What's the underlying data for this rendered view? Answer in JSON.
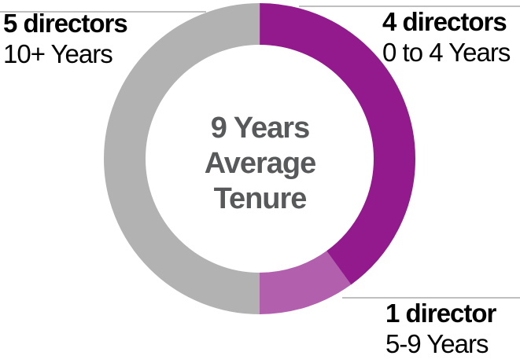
{
  "chart_data": {
    "type": "pie",
    "subtype": "donut",
    "title": "",
    "direction": "clockwise",
    "start_angle_deg": 0,
    "total_directors": 10,
    "segments": [
      {
        "name": "0 to 4 Years",
        "directors": 4,
        "color": "#921A8D",
        "callout": "4 directors"
      },
      {
        "name": "5-9 Years",
        "directors": 1,
        "color": "#B260AE",
        "callout": "1 director"
      },
      {
        "name": "10+ Years",
        "directors": 5,
        "color": "#B2B2B2",
        "callout": "5 directors"
      }
    ],
    "center_text": [
      "9 Years",
      "Average",
      "Tenure"
    ],
    "legend_position": "external-callouts"
  },
  "callouts": {
    "top_left": {
      "bold": "5 directors",
      "sub": "10+ Years"
    },
    "top_right": {
      "bold": "4 directors",
      "sub": "0 to 4 Years"
    },
    "bottom_right": {
      "bold": "1 director",
      "sub": "5-9 Years"
    }
  },
  "colors": {
    "leader_line": "#BFBFBF",
    "center_text": "#58595B",
    "label_text": "#000000",
    "background": "#FFFFFF"
  }
}
